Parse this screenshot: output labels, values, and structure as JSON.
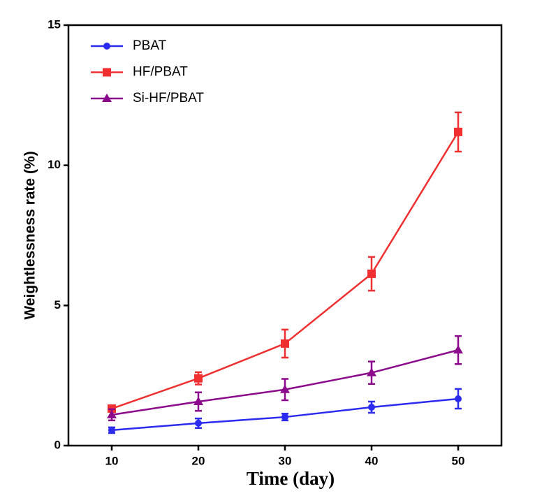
{
  "chart_data": {
    "type": "line",
    "x_label": "Time (day)",
    "y_label": "Weightlessness rate (%)",
    "x": [
      10,
      20,
      30,
      40,
      50
    ],
    "series": [
      {
        "name": "PBAT",
        "color": "#2b2bf0",
        "marker": "circle",
        "values": [
          0.55,
          0.8,
          1.02,
          1.37,
          1.67
        ],
        "errors": [
          0.1,
          0.17,
          0.12,
          0.2,
          0.35
        ]
      },
      {
        "name": "HF/PBAT",
        "color": "#f03030",
        "marker": "square",
        "values": [
          1.32,
          2.4,
          3.64,
          6.13,
          11.19
        ],
        "errors": [
          0.1,
          0.22,
          0.5,
          0.6,
          0.7
        ]
      },
      {
        "name": "Si-HF/PBAT",
        "color": "#8b0a8b",
        "marker": "triangle",
        "values": [
          1.1,
          1.57,
          2.0,
          2.6,
          3.41
        ],
        "errors": [
          0.2,
          0.33,
          0.38,
          0.4,
          0.5
        ]
      }
    ],
    "xlim": [
      5,
      55
    ],
    "xticks": [
      10,
      20,
      30,
      40,
      50
    ],
    "ylim": [
      0,
      15
    ],
    "yticks": [
      0,
      5,
      10,
      15
    ],
    "grid": false,
    "legend": "upper-left"
  }
}
